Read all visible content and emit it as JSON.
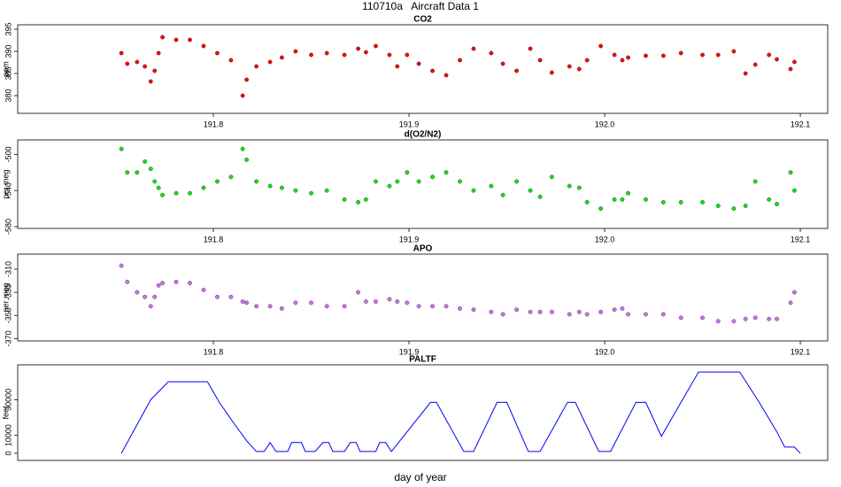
{
  "title": "110710a   Aircraft Data 1",
  "xlabel": "day of year",
  "chart_data": [
    {
      "type": "scatter",
      "title": "CO2",
      "ylabel": "ppm",
      "color": "#ff0000",
      "xlim": [
        191.7,
        192.114
      ],
      "ylim": [
        376,
        396
      ],
      "xticks": [
        191.8,
        191.9,
        {
          "value": 192,
          "label": "192.0"
        },
        192.1
      ],
      "yticks": [
        380,
        385,
        390,
        395
      ],
      "x": [
        191.753,
        191.756,
        191.761,
        191.765,
        191.768,
        191.77,
        191.772,
        191.774,
        191.781,
        191.788,
        191.795,
        191.802,
        191.809,
        191.815,
        191.817,
        191.822,
        191.829,
        191.835,
        191.842,
        191.85,
        191.858,
        191.867,
        191.874,
        191.878,
        191.883,
        191.89,
        191.894,
        191.899,
        191.905,
        191.912,
        191.919,
        191.926,
        191.933,
        191.942,
        191.948,
        191.955,
        191.962,
        191.967,
        191.973,
        191.982,
        191.987,
        191.991,
        191.998,
        192.005,
        192.009,
        192.012,
        192.021,
        192.03,
        192.039,
        192.05,
        192.058,
        192.066,
        192.072,
        192.077,
        192.084,
        192.088,
        192.095,
        192.097
      ],
      "values": [
        389.6,
        387.2,
        387.6,
        386.6,
        383.2,
        385.6,
        389.6,
        393.2,
        392.6,
        392.6,
        391.2,
        389.6,
        388,
        380,
        383.6,
        386.6,
        387.6,
        388.6,
        390,
        389.2,
        389.6,
        389.2,
        390.6,
        389.8,
        391.2,
        389.2,
        386.6,
        389.2,
        387.2,
        385.6,
        384.6,
        388,
        390.6,
        389.6,
        387.2,
        385.6,
        390.6,
        388,
        385.2,
        386.6,
        386,
        388,
        391.2,
        389.2,
        388,
        388.6,
        389,
        389,
        389.6,
        389.2,
        389.2,
        390,
        385,
        387,
        389.2,
        388.2,
        386,
        387.6
      ]
    },
    {
      "type": "scatter",
      "title": "d(O2/N2)",
      "ylabel": "per meg",
      "color": "#00ee00",
      "xlim": [
        191.7,
        192.114
      ],
      "ylim": [
        -582,
        -484
      ],
      "xticks": [
        191.8,
        191.9,
        {
          "value": 192,
          "label": "192.0"
        },
        192.1
      ],
      "yticks": [
        -500,
        -540,
        -580
      ],
      "x": [
        191.753,
        191.756,
        191.761,
        191.765,
        191.768,
        191.77,
        191.772,
        191.774,
        191.781,
        191.788,
        191.795,
        191.802,
        191.809,
        191.815,
        191.817,
        191.822,
        191.829,
        191.835,
        191.842,
        191.85,
        191.858,
        191.867,
        191.874,
        191.878,
        191.883,
        191.89,
        191.894,
        191.899,
        191.905,
        191.912,
        191.919,
        191.926,
        191.933,
        191.942,
        191.948,
        191.955,
        191.962,
        191.967,
        191.973,
        191.982,
        191.987,
        191.991,
        191.998,
        192.005,
        192.009,
        192.012,
        192.021,
        192.03,
        192.039,
        192.05,
        192.058,
        192.066,
        192.072,
        192.077,
        192.084,
        192.088,
        192.095,
        192.097
      ],
      "values": [
        -494,
        -520,
        -520,
        -508,
        -516,
        -530,
        -537,
        -545,
        -543,
        -543,
        -537,
        -530,
        -525,
        -494,
        -506,
        -530,
        -535,
        -537,
        -540,
        -543,
        -540,
        -550,
        -553,
        -550,
        -530,
        -535,
        -530,
        -520,
        -530,
        -525,
        -520,
        -530,
        -540,
        -535,
        -545,
        -530,
        -540,
        -547,
        -525,
        -535,
        -537,
        -553,
        -560,
        -550,
        -550,
        -543,
        -550,
        -553,
        -553,
        -553,
        -557,
        -560,
        -557,
        -530,
        -550,
        -555,
        -520,
        -540
      ]
    },
    {
      "type": "scatter",
      "title": "APO",
      "ylabel": "per meg",
      "color": "#d070f0",
      "xlim": [
        191.7,
        192.114
      ],
      "ylim": [
        -372,
        -297
      ],
      "xticks": [
        191.8,
        191.9,
        {
          "value": 192,
          "label": "192.0"
        },
        192.1
      ],
      "yticks": [
        -310,
        -330,
        -350,
        -370
      ],
      "x": [
        191.753,
        191.756,
        191.761,
        191.765,
        191.768,
        191.77,
        191.772,
        191.774,
        191.781,
        191.788,
        191.795,
        191.802,
        191.809,
        191.815,
        191.817,
        191.822,
        191.829,
        191.835,
        191.842,
        191.85,
        191.858,
        191.867,
        191.874,
        191.878,
        191.883,
        191.89,
        191.894,
        191.899,
        191.905,
        191.912,
        191.919,
        191.926,
        191.933,
        191.942,
        191.948,
        191.955,
        191.962,
        191.967,
        191.973,
        191.982,
        191.987,
        191.991,
        191.998,
        192.005,
        192.009,
        192.012,
        192.021,
        192.03,
        192.039,
        192.05,
        192.058,
        192.066,
        192.072,
        192.077,
        192.084,
        192.088,
        192.095,
        192.097
      ],
      "values": [
        -307,
        -321,
        -330,
        -334,
        -342,
        -334,
        -324,
        -322,
        -321,
        -322,
        -328,
        -334,
        -334,
        -338,
        -339,
        -342,
        -342,
        -344,
        -339,
        -339,
        -342,
        -342,
        -330,
        -338,
        -338,
        -336,
        -338,
        -339,
        -342,
        -342,
        -342,
        -344,
        -345,
        -347,
        -349,
        -345,
        -347,
        -347,
        -347,
        -349,
        -347,
        -349,
        -347,
        -345,
        -344,
        -349,
        -349,
        -349,
        -352,
        -352,
        -355,
        -355,
        -353,
        -352,
        -353,
        -353,
        -339,
        -330
      ]
    },
    {
      "type": "line",
      "title": "PALTF",
      "ylabel": "feet",
      "color": "#0000ff",
      "xlim": [
        191.7,
        192.114
      ],
      "ylim": [
        -4000,
        49500
      ],
      "yticks": [
        0,
        10000,
        30000
      ],
      "x": [
        191.753,
        191.768,
        191.777,
        191.797,
        191.803,
        191.811,
        191.817,
        191.822,
        191.826,
        191.829,
        191.832,
        191.838,
        191.84,
        191.845,
        191.847,
        191.852,
        191.856,
        191.859,
        191.861,
        191.867,
        191.87,
        191.873,
        191.875,
        191.883,
        191.885,
        191.888,
        191.891,
        191.911,
        191.914,
        191.928,
        191.933,
        191.945,
        191.95,
        191.961,
        191.967,
        191.981,
        191.985,
        191.997,
        192.003,
        192.016,
        192.021,
        192.029,
        192.048,
        192.069,
        192.079,
        192.088,
        192.092,
        192.097,
        192.1
      ],
      "values": [
        0,
        30000,
        40000,
        40000,
        28500,
        16000,
        7000,
        1000,
        1000,
        6000,
        1000,
        1000,
        6000,
        6000,
        1000,
        1000,
        6000,
        6000,
        1000,
        1000,
        6000,
        6000,
        1000,
        1000,
        6000,
        6000,
        1000,
        28500,
        28500,
        1000,
        1000,
        28500,
        28500,
        1000,
        1000,
        28500,
        28500,
        1000,
        1000,
        28500,
        28500,
        9500,
        45500,
        45500,
        28500,
        12000,
        3500,
        3500,
        0
      ]
    }
  ]
}
